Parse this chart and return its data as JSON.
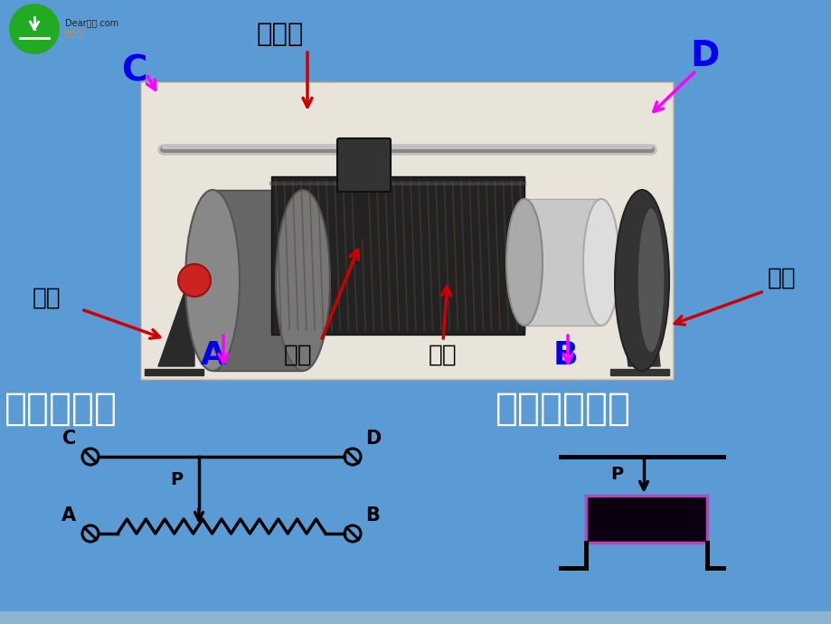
{
  "bg_color": "#5b9bd5",
  "black": "#000000",
  "white": "#FFFFFF",
  "magenta": "#FF00FF",
  "blue": "#0000EE",
  "red_arrow": "#CC0000",
  "photo_bg": "#c8c0b0",
  "box_fill": "#0a0010",
  "box_border": "#bb44bb",
  "label_jinshu": "金属棒",
  "label_zhijia": "支架",
  "label_huapian": "滑片",
  "label_xianquan": "线圈",
  "label_zitong": "瓷筒",
  "label_jiegou": "结构示意图",
  "label_dianlu": "电路中的符号",
  "label_C": "C",
  "label_D": "D",
  "label_A": "A",
  "label_B": "B",
  "label_P": "P",
  "bottom_strip": "#8ab4d0"
}
